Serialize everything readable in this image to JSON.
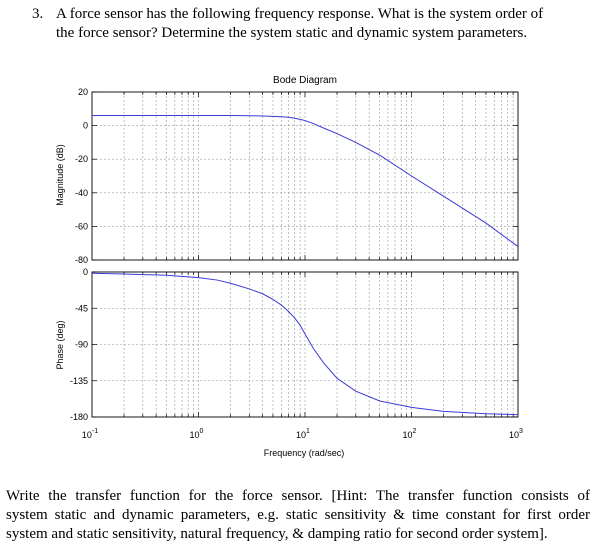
{
  "question": {
    "number": "3.",
    "lines": [
      "A force sensor has the following frequency response. What is the system order of",
      "the force sensor? Determine the system static and dynamic system parameters."
    ]
  },
  "hint_lines": [
    "Write the transfer function for the force sensor. [Hint: The transfer function consists of",
    "system static and dynamic parameters, e.g. static sensitivity & time constant for first order",
    "system and static sensitivity, natural frequency, & damping ratio for second order system]."
  ],
  "chart_data": [
    {
      "type": "line",
      "title": "Bode Diagram",
      "ylabel": "Magnitude (dB)",
      "xscale": "log",
      "xlim": [
        0.1,
        1000
      ],
      "ylim": [
        -80,
        20
      ],
      "yticks": [
        "20",
        "0",
        "-20",
        "-40",
        "-60",
        "-80"
      ],
      "grid": true,
      "line_color": "#3b3bd6",
      "series": [
        {
          "x": [
            0.1,
            0.3,
            1,
            2,
            3,
            4,
            5,
            6,
            7,
            8,
            9,
            10,
            12,
            15,
            20,
            30,
            50,
            100,
            200,
            500,
            1000
          ],
          "y": [
            6,
            6,
            6,
            6,
            5.9,
            5.7,
            5.5,
            5.3,
            5,
            4.4,
            3.7,
            3,
            1.2,
            -1.5,
            -4.8,
            -10,
            -17.5,
            -30,
            -42,
            -58,
            -72
          ]
        }
      ]
    },
    {
      "type": "line",
      "ylabel": "Phase (deg)",
      "xlabel": "Frequency  (rad/sec)",
      "xscale": "log",
      "xlim": [
        0.1,
        1000
      ],
      "ylim": [
        -180,
        0
      ],
      "yticks": [
        "0",
        "-45",
        "-90",
        "-135",
        "-180"
      ],
      "xticks": [
        {
          "base": "10",
          "exp": "-1"
        },
        {
          "base": "10",
          "exp": "0"
        },
        {
          "base": "10",
          "exp": "1"
        },
        {
          "base": "10",
          "exp": "2"
        },
        {
          "base": "10",
          "exp": "3"
        }
      ],
      "grid": true,
      "line_color": "#3b3bd6",
      "series": [
        {
          "x": [
            0.1,
            0.2,
            0.5,
            1,
            1.5,
            2,
            3,
            4,
            5,
            6,
            7,
            8,
            9,
            10,
            12,
            15,
            20,
            30,
            50,
            100,
            200,
            500,
            1000
          ],
          "y": [
            -1.5,
            -2.5,
            -4,
            -7,
            -10,
            -14,
            -21,
            -27,
            -34,
            -41,
            -49,
            -57,
            -66,
            -77,
            -95,
            -113,
            -132,
            -148,
            -160,
            -168,
            -173,
            -176,
            -177
          ]
        }
      ]
    }
  ]
}
